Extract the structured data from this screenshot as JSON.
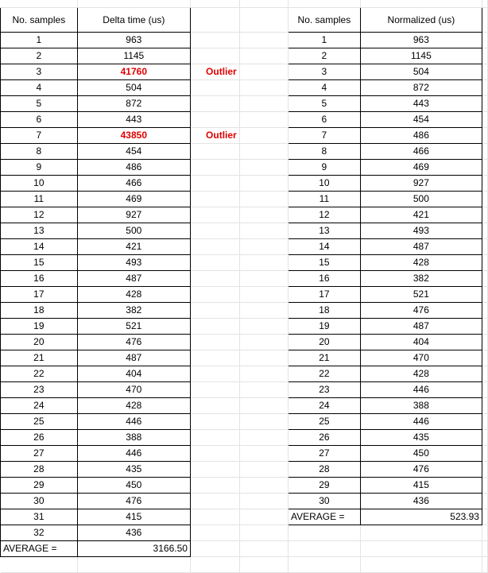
{
  "left_table": {
    "headers": {
      "samples": "No. samples",
      "delta": "Delta time (us)"
    },
    "rows": [
      {
        "n": "1",
        "v": "963"
      },
      {
        "n": "2",
        "v": "1145"
      },
      {
        "n": "3",
        "v": "41760",
        "outlier": true
      },
      {
        "n": "4",
        "v": "504"
      },
      {
        "n": "5",
        "v": "872"
      },
      {
        "n": "6",
        "v": "443"
      },
      {
        "n": "7",
        "v": "43850",
        "outlier": true
      },
      {
        "n": "8",
        "v": "454"
      },
      {
        "n": "9",
        "v": "486"
      },
      {
        "n": "10",
        "v": "466"
      },
      {
        "n": "11",
        "v": "469"
      },
      {
        "n": "12",
        "v": "927"
      },
      {
        "n": "13",
        "v": "500"
      },
      {
        "n": "14",
        "v": "421"
      },
      {
        "n": "15",
        "v": "493"
      },
      {
        "n": "16",
        "v": "487"
      },
      {
        "n": "17",
        "v": "428"
      },
      {
        "n": "18",
        "v": "382"
      },
      {
        "n": "19",
        "v": "521"
      },
      {
        "n": "20",
        "v": "476"
      },
      {
        "n": "21",
        "v": "487"
      },
      {
        "n": "22",
        "v": "404"
      },
      {
        "n": "23",
        "v": "470"
      },
      {
        "n": "24",
        "v": "428"
      },
      {
        "n": "25",
        "v": "446"
      },
      {
        "n": "26",
        "v": "388"
      },
      {
        "n": "27",
        "v": "446"
      },
      {
        "n": "28",
        "v": "435"
      },
      {
        "n": "29",
        "v": "450"
      },
      {
        "n": "30",
        "v": "476"
      },
      {
        "n": "31",
        "v": "415"
      },
      {
        "n": "32",
        "v": "436"
      }
    ],
    "average_label": "AVERAGE =",
    "average_value": "3166.50"
  },
  "outlier_label": "Outlier",
  "right_table": {
    "headers": {
      "samples": "No. samples",
      "normalized": "Normalized (us)"
    },
    "rows": [
      {
        "n": "1",
        "v": "963"
      },
      {
        "n": "2",
        "v": "1145"
      },
      {
        "n": "3",
        "v": "504"
      },
      {
        "n": "4",
        "v": "872"
      },
      {
        "n": "5",
        "v": "443"
      },
      {
        "n": "6",
        "v": "454"
      },
      {
        "n": "7",
        "v": "486"
      },
      {
        "n": "8",
        "v": "466"
      },
      {
        "n": "9",
        "v": "469"
      },
      {
        "n": "10",
        "v": "927"
      },
      {
        "n": "11",
        "v": "500"
      },
      {
        "n": "12",
        "v": "421"
      },
      {
        "n": "13",
        "v": "493"
      },
      {
        "n": "14",
        "v": "487"
      },
      {
        "n": "15",
        "v": "428"
      },
      {
        "n": "16",
        "v": "382"
      },
      {
        "n": "17",
        "v": "521"
      },
      {
        "n": "18",
        "v": "476"
      },
      {
        "n": "19",
        "v": "487"
      },
      {
        "n": "20",
        "v": "404"
      },
      {
        "n": "21",
        "v": "470"
      },
      {
        "n": "22",
        "v": "428"
      },
      {
        "n": "23",
        "v": "446"
      },
      {
        "n": "24",
        "v": "388"
      },
      {
        "n": "25",
        "v": "446"
      },
      {
        "n": "26",
        "v": "435"
      },
      {
        "n": "27",
        "v": "450"
      },
      {
        "n": "28",
        "v": "476"
      },
      {
        "n": "29",
        "v": "415"
      },
      {
        "n": "30",
        "v": "436"
      }
    ],
    "average_label": "AVERAGE =",
    "average_value": "523.93"
  },
  "colors": {
    "outlier": "#e00000",
    "gridline": "#e3e3e3",
    "border": "#000000"
  }
}
